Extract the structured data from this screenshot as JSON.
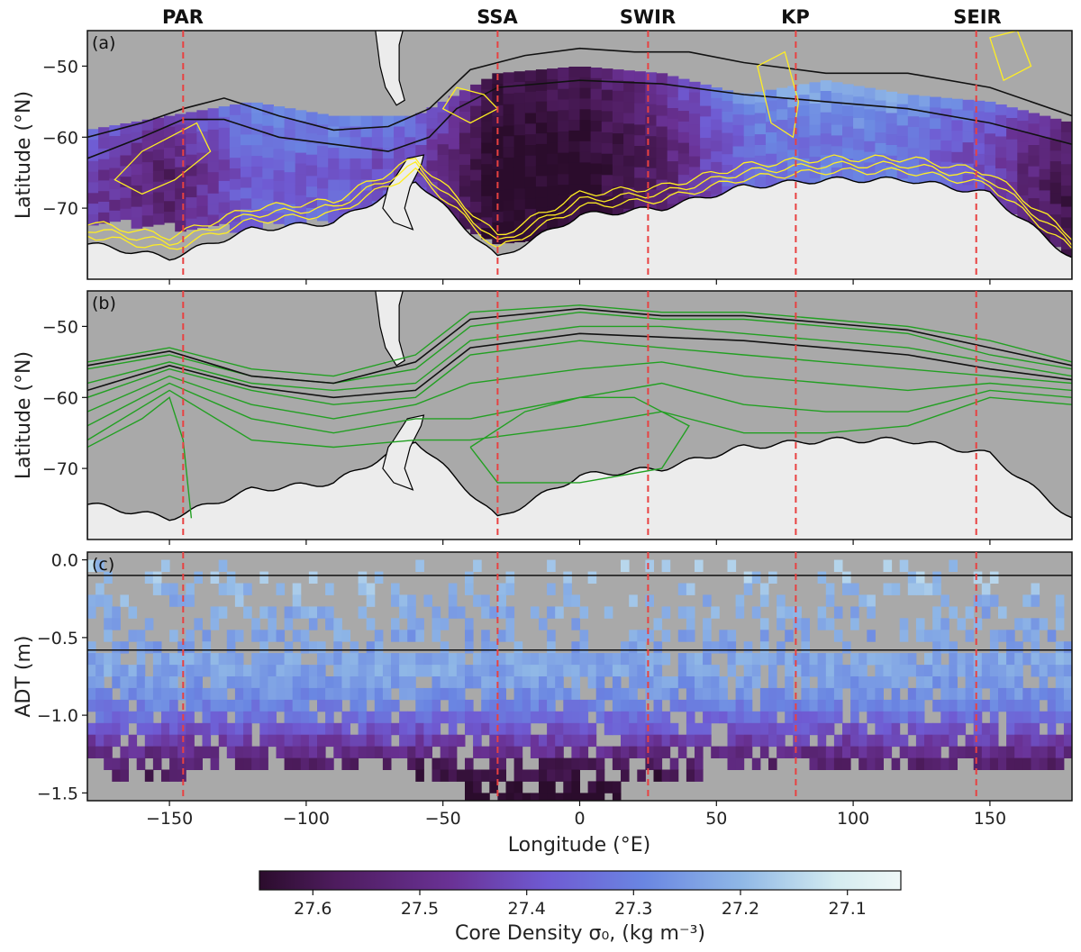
{
  "colors": {
    "ocean_gray": "#a9a9a9",
    "land": "#ececec",
    "coast": "#000000",
    "yellow_contours": "#ffee22",
    "green_contours": "#22a022",
    "ridge_line": "#e84141",
    "colormap": [
      "#2b0c2c",
      "#4e1c5e",
      "#6a3296",
      "#6f5bd3",
      "#6a86e2",
      "#8fb7e6",
      "#d4ecf0",
      "#eef7f7"
    ]
  },
  "chart_data": [
    {
      "type": "heatmap",
      "panel": "(a)",
      "ylabel": "Latitude (°N)",
      "xlim": [
        -180,
        180
      ],
      "ylim": [
        -80,
        -45
      ],
      "yticks": [
        -50,
        -60,
        -70
      ],
      "yticklabels": [
        "−50",
        "−60",
        "−70"
      ],
      "variable": "core density σ0 (kg m-3)",
      "band_profile": [
        {
          "lon": -180,
          "north": -59,
          "south": -71,
          "coast": -75
        },
        {
          "lon": -150,
          "north": -57,
          "south": -72,
          "coast": -77
        },
        {
          "lon": -120,
          "north": -55,
          "south": -72,
          "coast": -73
        },
        {
          "lon": -90,
          "north": -57,
          "south": -71,
          "coast": -72
        },
        {
          "lon": -60,
          "north": -57,
          "south": -68,
          "coast": -66
        },
        {
          "lon": -30,
          "north": -51,
          "south": -75,
          "coast": -77
        },
        {
          "lon": 0,
          "north": -50,
          "south": -72,
          "coast": -71
        },
        {
          "lon": 30,
          "north": -51,
          "south": -70,
          "coast": -70
        },
        {
          "lon": 60,
          "north": -54,
          "south": -68,
          "coast": -67
        },
        {
          "lon": 90,
          "north": -52,
          "south": -67,
          "coast": -66
        },
        {
          "lon": 120,
          "north": -54,
          "south": -66,
          "coast": -66
        },
        {
          "lon": 150,
          "north": -55,
          "south": -68,
          "coast": -68
        },
        {
          "lon": 180,
          "north": -58,
          "south": -77,
          "coast": -77
        }
      ],
      "density_profile": [
        {
          "lon": -180,
          "density": 27.44
        },
        {
          "lon": -150,
          "density": 27.52
        },
        {
          "lon": -120,
          "density": 27.35
        },
        {
          "lon": -90,
          "density": 27.36
        },
        {
          "lon": -60,
          "density": 27.4
        },
        {
          "lon": -30,
          "density": 27.64
        },
        {
          "lon": 0,
          "density": 27.62
        },
        {
          "lon": 30,
          "density": 27.52
        },
        {
          "lon": 60,
          "density": 27.34
        },
        {
          "lon": 90,
          "density": 27.3
        },
        {
          "lon": 120,
          "density": 27.32
        },
        {
          "lon": 150,
          "density": 27.42
        },
        {
          "lon": 180,
          "density": 27.58
        }
      ]
    },
    {
      "type": "line",
      "panel": "(b)",
      "ylabel": "Latitude (°N)",
      "xlim": [
        -180,
        180
      ],
      "ylim": [
        -80,
        -45
      ],
      "yticks": [
        -50,
        -60,
        -70
      ],
      "yticklabels": [
        "−50",
        "−60",
        "−70"
      ],
      "contour_lines": [
        {
          "color": "green",
          "points": [
            [
              -180,
              -55
            ],
            [
              -150,
              -53
            ],
            [
              -120,
              -56
            ],
            [
              -90,
              -57
            ],
            [
              -60,
              -54
            ],
            [
              -40,
              -48
            ],
            [
              0,
              -47
            ],
            [
              30,
              -48
            ],
            [
              60,
              -48
            ],
            [
              90,
              -49
            ],
            [
              120,
              -50
            ],
            [
              150,
              -52
            ],
            [
              180,
              -55
            ]
          ]
        },
        {
          "color": "green",
          "points": [
            [
              -180,
              -56
            ],
            [
              -150,
              -54
            ],
            [
              -120,
              -57
            ],
            [
              -90,
              -58
            ],
            [
              -60,
              -56
            ],
            [
              -40,
              -50
            ],
            [
              0,
              -48
            ],
            [
              30,
              -49
            ],
            [
              60,
              -49
            ],
            [
              90,
              -50
            ],
            [
              120,
              -51
            ],
            [
              150,
              -54
            ],
            [
              180,
              -56
            ]
          ]
        },
        {
          "color": "green",
          "points": [
            [
              -180,
              -58
            ],
            [
              -150,
              -55
            ],
            [
              -120,
              -58
            ],
            [
              -90,
              -59
            ],
            [
              -60,
              -58
            ],
            [
              -40,
              -52
            ],
            [
              0,
              -50
            ],
            [
              30,
              -50
            ],
            [
              60,
              -51
            ],
            [
              90,
              -52
            ],
            [
              120,
              -53
            ],
            [
              150,
              -55
            ],
            [
              180,
              -57
            ]
          ]
        },
        {
          "color": "green",
          "points": [
            [
              -180,
              -60
            ],
            [
              -150,
              -56
            ],
            [
              -120,
              -59
            ],
            [
              -90,
              -61
            ],
            [
              -60,
              -60
            ],
            [
              -40,
              -54
            ],
            [
              0,
              -52
            ],
            [
              30,
              -53
            ],
            [
              60,
              -54
            ],
            [
              90,
              -55
            ],
            [
              120,
              -56
            ],
            [
              150,
              -57
            ],
            [
              180,
              -58
            ]
          ]
        },
        {
          "color": "green",
          "points": [
            [
              -180,
              -62
            ],
            [
              -150,
              -57
            ],
            [
              -120,
              -61
            ],
            [
              -90,
              -63
            ],
            [
              -60,
              -61
            ],
            [
              -40,
              -58
            ],
            [
              0,
              -56
            ],
            [
              30,
              -55
            ],
            [
              60,
              -57
            ],
            [
              90,
              -58
            ],
            [
              120,
              -59
            ],
            [
              150,
              -58
            ],
            [
              180,
              -59
            ]
          ]
        },
        {
          "color": "green",
          "points": [
            [
              -180,
              -64
            ],
            [
              -150,
              -58
            ],
            [
              -120,
              -63
            ],
            [
              -90,
              -65
            ],
            [
              -60,
              -63
            ],
            [
              -40,
              -63
            ],
            [
              0,
              -60
            ],
            [
              30,
              -58
            ],
            [
              60,
              -61
            ],
            [
              90,
              -62
            ],
            [
              120,
              -62
            ],
            [
              150,
              -59
            ],
            [
              180,
              -60
            ]
          ]
        },
        {
          "color": "green",
          "points": [
            [
              -180,
              -66
            ],
            [
              -150,
              -59
            ],
            [
              -120,
              -66
            ],
            [
              -90,
              -67
            ],
            [
              -60,
              -66
            ],
            [
              -40,
              -66
            ],
            [
              0,
              -64
            ],
            [
              30,
              -62
            ],
            [
              60,
              -65
            ],
            [
              90,
              -65
            ],
            [
              120,
              -64
            ],
            [
              150,
              -60
            ],
            [
              180,
              -61
            ]
          ]
        },
        {
          "color": "green",
          "points": [
            [
              -180,
              -67
            ],
            [
              -160,
              -63
            ],
            [
              -150,
              -60
            ],
            [
              -145,
              -66
            ],
            [
              -142,
              -77
            ]
          ]
        },
        {
          "color": "green",
          "points": [
            [
              -40,
              -67
            ],
            [
              -20,
              -62
            ],
            [
              0,
              -60
            ],
            [
              20,
              -60
            ],
            [
              40,
              -64
            ],
            [
              30,
              -70
            ],
            [
              0,
              -72
            ],
            [
              -30,
              -72
            ],
            [
              -40,
              -67
            ]
          ]
        },
        {
          "color": "black",
          "points": [
            [
              -180,
              -55.5
            ],
            [
              -150,
              -53.5
            ],
            [
              -120,
              -57
            ],
            [
              -90,
              -58
            ],
            [
              -60,
              -55
            ],
            [
              -40,
              -49
            ],
            [
              0,
              -47.5
            ],
            [
              30,
              -48.5
            ],
            [
              60,
              -48.5
            ],
            [
              90,
              -49.5
            ],
            [
              120,
              -50.5
            ],
            [
              150,
              -53
            ],
            [
              180,
              -55.5
            ]
          ]
        },
        {
          "color": "black",
          "points": [
            [
              -180,
              -59
            ],
            [
              -150,
              -55.5
            ],
            [
              -120,
              -58.5
            ],
            [
              -90,
              -60
            ],
            [
              -60,
              -59
            ],
            [
              -40,
              -53
            ],
            [
              0,
              -51
            ],
            [
              30,
              -51.5
            ],
            [
              60,
              -52
            ],
            [
              90,
              -53
            ],
            [
              120,
              -54
            ],
            [
              150,
              -56
            ],
            [
              180,
              -57.5
            ]
          ]
        }
      ]
    },
    {
      "type": "heatmap",
      "panel": "(c)",
      "ylabel": "ADT (m)",
      "xlabel": "Longitude (°E)",
      "xlim": [
        -180,
        180
      ],
      "ylim": [
        -1.55,
        0.05
      ],
      "yticks": [
        0.0,
        -0.5,
        -1.0,
        -1.5
      ],
      "yticklabels": [
        "0.0",
        "−0.5",
        "−1.0",
        "−1.5"
      ],
      "xticks": [
        -150,
        -100,
        -50,
        0,
        50,
        100,
        150
      ],
      "xticklabels": [
        "−150",
        "−100",
        "−50",
        "0",
        "50",
        "100",
        "150"
      ],
      "hlines": [
        -0.1,
        -0.58
      ],
      "adt_density_profile": [
        {
          "adt": -0.1,
          "density": 27.2
        },
        {
          "adt": -0.3,
          "density": 27.24
        },
        {
          "adt": -0.5,
          "density": 27.26
        },
        {
          "adt": -0.7,
          "density": 27.25
        },
        {
          "adt": -0.9,
          "density": 27.3
        },
        {
          "adt": -1.05,
          "density": 27.38
        },
        {
          "adt": -1.2,
          "density": 27.48
        },
        {
          "adt": -1.35,
          "density": 27.56
        },
        {
          "adt": -1.5,
          "density": 27.62
        }
      ],
      "deep_extent": [
        {
          "adt": -1.3,
          "lon_min": -180,
          "lon_max": 180
        },
        {
          "adt": -1.4,
          "lon_min": -60,
          "lon_max": 45
        },
        {
          "adt": -1.5,
          "lon_min": -43,
          "lon_max": 18
        }
      ]
    }
  ],
  "ridges": [
    {
      "label": "PAR",
      "lon": -145
    },
    {
      "label": "SSA",
      "lon": -30
    },
    {
      "label": "SWIR",
      "lon": 25
    },
    {
      "label": "KP",
      "lon": 79
    },
    {
      "label": "SEIR",
      "lon": 145
    }
  ],
  "panel_labels": {
    "a": "(a)",
    "b": "(b)",
    "c": "(c)"
  },
  "axis_labels": {
    "lat_a": "Latitude (°N)",
    "lat_b": "Latitude (°N)",
    "adt": "ADT (m)",
    "lon": "Longitude (°E)"
  },
  "colorbar": {
    "range": [
      27.65,
      27.05
    ],
    "ticks": [
      27.6,
      27.5,
      27.4,
      27.3,
      27.2,
      27.1
    ],
    "ticklabels": [
      "27.6",
      "27.5",
      "27.4",
      "27.3",
      "27.2",
      "27.1"
    ],
    "label": "Core Density σ₀, (kg m⁻³)"
  }
}
